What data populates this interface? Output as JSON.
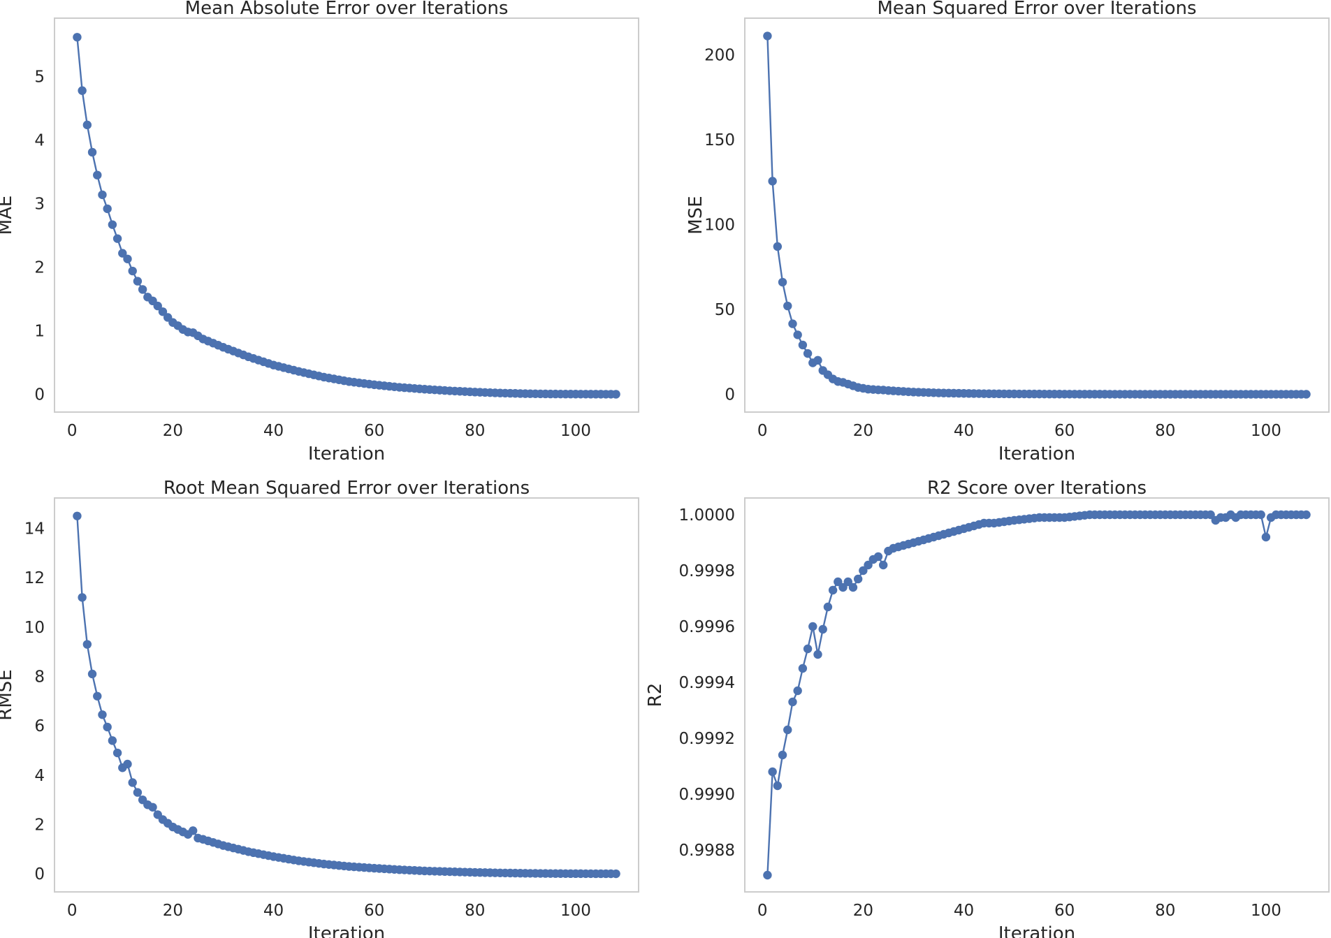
{
  "figure": {
    "background": "#ffffff",
    "line_color": "#4c72b0",
    "grid_color": "#cccccc"
  },
  "chart_data": [
    {
      "type": "line",
      "title": "Mean Absolute Error over Iterations",
      "xlabel": "Iteration",
      "ylabel": "MAE",
      "xlim": [
        -3.5,
        112.5
      ],
      "ylim": [
        -0.28,
        5.92
      ],
      "xticks": [
        0,
        20,
        40,
        60,
        80,
        100
      ],
      "xtick_labels": [
        "0",
        "20",
        "40",
        "60",
        "80",
        "100"
      ],
      "yticks": [
        0,
        1,
        2,
        3,
        4,
        5
      ],
      "ytick_labels": [
        "0",
        "1",
        "2",
        "3",
        "4",
        "5"
      ],
      "marker": "o",
      "x_start": 1,
      "x_end": 108,
      "anchors": [
        [
          1,
          5.62
        ],
        [
          2,
          4.78
        ],
        [
          3,
          4.24
        ],
        [
          4,
          3.81
        ],
        [
          5,
          3.45
        ],
        [
          6,
          3.14
        ],
        [
          7,
          2.92
        ],
        [
          8,
          2.67
        ],
        [
          9,
          2.45
        ],
        [
          10,
          2.22
        ],
        [
          11,
          2.13
        ],
        [
          12,
          1.94
        ],
        [
          13,
          1.78
        ],
        [
          14,
          1.65
        ],
        [
          15,
          1.53
        ],
        [
          16,
          1.47
        ],
        [
          17,
          1.39
        ],
        [
          18,
          1.3
        ],
        [
          19,
          1.21
        ],
        [
          20,
          1.13
        ],
        [
          21,
          1.08
        ],
        [
          22,
          1.02
        ],
        [
          23,
          0.98
        ],
        [
          24,
          0.97
        ],
        [
          26,
          0.87
        ],
        [
          30,
          0.74
        ],
        [
          35,
          0.59
        ],
        [
          40,
          0.46
        ],
        [
          45,
          0.36
        ],
        [
          50,
          0.27
        ],
        [
          55,
          0.2
        ],
        [
          60,
          0.15
        ],
        [
          65,
          0.11
        ],
        [
          70,
          0.08
        ],
        [
          75,
          0.055
        ],
        [
          80,
          0.035
        ],
        [
          85,
          0.02
        ],
        [
          90,
          0.01
        ],
        [
          95,
          0.005
        ],
        [
          100,
          0.003
        ],
        [
          108,
          0.001
        ]
      ]
    },
    {
      "type": "line",
      "title": "Mean Squared Error over Iterations",
      "xlabel": "Iteration",
      "ylabel": "MSE",
      "xlim": [
        -3.5,
        112.5
      ],
      "ylim": [
        -10.5,
        221.5
      ],
      "xticks": [
        0,
        20,
        40,
        60,
        80,
        100
      ],
      "xtick_labels": [
        "0",
        "20",
        "40",
        "60",
        "80",
        "100"
      ],
      "yticks": [
        0,
        50,
        100,
        150,
        200
      ],
      "ytick_labels": [
        "0",
        "50",
        "100",
        "150",
        "200"
      ],
      "marker": "o",
      "x_start": 1,
      "x_end": 108,
      "anchors": [
        [
          1,
          211
        ],
        [
          2,
          125.5
        ],
        [
          3,
          87
        ],
        [
          4,
          66
        ],
        [
          5,
          52
        ],
        [
          6,
          41.5
        ],
        [
          7,
          35
        ],
        [
          8,
          29
        ],
        [
          9,
          24
        ],
        [
          10,
          18.5
        ],
        [
          11,
          20
        ],
        [
          12,
          14
        ],
        [
          13,
          11.5
        ],
        [
          14,
          9
        ],
        [
          15,
          7.5
        ],
        [
          16,
          7
        ],
        [
          17,
          6
        ],
        [
          18,
          5
        ],
        [
          19,
          4
        ],
        [
          20,
          3.5
        ],
        [
          21,
          3
        ],
        [
          22,
          2.8
        ],
        [
          23,
          2.6
        ],
        [
          24,
          2.5
        ],
        [
          25,
          2.2
        ],
        [
          26,
          2.0
        ],
        [
          30,
          1.3
        ],
        [
          35,
          0.8
        ],
        [
          40,
          0.5
        ],
        [
          45,
          0.3
        ],
        [
          50,
          0.2
        ],
        [
          60,
          0.08
        ],
        [
          70,
          0.03
        ],
        [
          80,
          0.01
        ],
        [
          90,
          0.003
        ],
        [
          100,
          0.001
        ],
        [
          108,
          0.0005
        ]
      ]
    },
    {
      "type": "line",
      "title": "Root Mean Squared Error over Iterations",
      "xlabel": "Iteration",
      "ylabel": "RMSE",
      "xlim": [
        -3.5,
        112.5
      ],
      "ylim": [
        -0.73,
        15.23
      ],
      "xticks": [
        0,
        20,
        40,
        60,
        80,
        100
      ],
      "xtick_labels": [
        "0",
        "20",
        "40",
        "60",
        "80",
        "100"
      ],
      "yticks": [
        0,
        2,
        4,
        6,
        8,
        10,
        12,
        14
      ],
      "ytick_labels": [
        "0",
        "2",
        "4",
        "6",
        "8",
        "10",
        "12",
        "14"
      ],
      "marker": "o",
      "x_start": 1,
      "x_end": 108,
      "anchors": [
        [
          1,
          14.5
        ],
        [
          2,
          11.2
        ],
        [
          3,
          9.3
        ],
        [
          4,
          8.1
        ],
        [
          5,
          7.2
        ],
        [
          6,
          6.45
        ],
        [
          7,
          5.95
        ],
        [
          8,
          5.4
        ],
        [
          9,
          4.9
        ],
        [
          10,
          4.3
        ],
        [
          11,
          4.45
        ],
        [
          12,
          3.7
        ],
        [
          13,
          3.3
        ],
        [
          14,
          3.0
        ],
        [
          15,
          2.8
        ],
        [
          16,
          2.7
        ],
        [
          17,
          2.4
        ],
        [
          18,
          2.2
        ],
        [
          19,
          2.05
        ],
        [
          20,
          1.9
        ],
        [
          21,
          1.8
        ],
        [
          22,
          1.7
        ],
        [
          23,
          1.6
        ],
        [
          24,
          1.75
        ],
        [
          25,
          1.45
        ],
        [
          26,
          1.4
        ],
        [
          30,
          1.15
        ],
        [
          35,
          0.9
        ],
        [
          40,
          0.7
        ],
        [
          45,
          0.53
        ],
        [
          50,
          0.4
        ],
        [
          55,
          0.3
        ],
        [
          60,
          0.23
        ],
        [
          65,
          0.17
        ],
        [
          70,
          0.12
        ],
        [
          75,
          0.09
        ],
        [
          80,
          0.06
        ],
        [
          85,
          0.04
        ],
        [
          90,
          0.025
        ],
        [
          95,
          0.015
        ],
        [
          100,
          0.01
        ],
        [
          108,
          0.005
        ]
      ]
    },
    {
      "type": "line",
      "title": "R2 Score over Iterations",
      "xlabel": "Iteration",
      "ylabel": "R2",
      "xlim": [
        -3.5,
        112.5
      ],
      "ylim": [
        0.99865,
        1.00006
      ],
      "xticks": [
        0,
        20,
        40,
        60,
        80,
        100
      ],
      "xtick_labels": [
        "0",
        "20",
        "40",
        "60",
        "80",
        "100"
      ],
      "yticks": [
        0.9988,
        0.999,
        0.9992,
        0.9994,
        0.9996,
        0.9998,
        1.0
      ],
      "ytick_labels": [
        "0.9988",
        "0.9990",
        "0.9992",
        "0.9994",
        "0.9996",
        "0.9998",
        "1.0000"
      ],
      "marker": "o",
      "x_start": 1,
      "x_end": 108,
      "anchors": [
        [
          1,
          0.99871
        ],
        [
          2,
          0.99908
        ],
        [
          3,
          0.99903
        ],
        [
          4,
          0.99914
        ],
        [
          5,
          0.99923
        ],
        [
          6,
          0.99933
        ],
        [
          7,
          0.99937
        ],
        [
          8,
          0.99945
        ],
        [
          9,
          0.99952
        ],
        [
          10,
          0.9996
        ],
        [
          11,
          0.9995
        ],
        [
          12,
          0.99959
        ],
        [
          13,
          0.99967
        ],
        [
          14,
          0.99973
        ],
        [
          15,
          0.99976
        ],
        [
          16,
          0.99974
        ],
        [
          17,
          0.99976
        ],
        [
          18,
          0.99974
        ],
        [
          19,
          0.99977
        ],
        [
          20,
          0.9998
        ],
        [
          21,
          0.99982
        ],
        [
          22,
          0.99984
        ],
        [
          23,
          0.99985
        ],
        [
          24,
          0.99982
        ],
        [
          25,
          0.99987
        ],
        [
          26,
          0.99988
        ],
        [
          28,
          0.99989
        ],
        [
          30,
          0.9999
        ],
        [
          32,
          0.99991
        ],
        [
          34,
          0.99992
        ],
        [
          36,
          0.99993
        ],
        [
          38,
          0.99994
        ],
        [
          40,
          0.99995
        ],
        [
          42,
          0.99996
        ],
        [
          44,
          0.99997
        ],
        [
          46,
          0.99997
        ],
        [
          50,
          0.99998
        ],
        [
          55,
          0.99999
        ],
        [
          60,
          0.99999
        ],
        [
          65,
          1.0
        ],
        [
          80,
          1.0
        ],
        [
          89,
          1.0
        ],
        [
          90,
          0.99998
        ],
        [
          91,
          0.99999
        ],
        [
          92,
          0.99999
        ],
        [
          93,
          1.0
        ],
        [
          94,
          0.99999
        ],
        [
          95,
          1.0
        ],
        [
          99,
          1.0
        ],
        [
          100,
          0.99992
        ],
        [
          101,
          0.99999
        ],
        [
          102,
          1.0
        ],
        [
          108,
          1.0
        ]
      ]
    }
  ]
}
